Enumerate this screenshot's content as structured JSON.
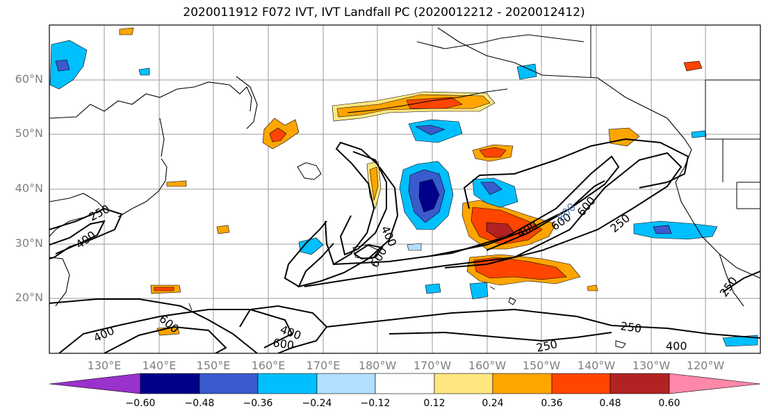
{
  "title": "2020011912 F072 IVT, IVT Landfall PC (2020012212 - 2020012412)",
  "lat_labels": [
    "60°N",
    "50°N",
    "40°N",
    "30°N",
    "20°N"
  ],
  "lon_labels": [
    "130°E",
    "140°E",
    "150°E",
    "160°E",
    "170°E",
    "180°W",
    "170°W",
    "160°W",
    "150°W",
    "140°W",
    "130°W",
    "120°W"
  ],
  "contour_labels": [
    "250",
    "400",
    "400",
    "600",
    "400",
    "600",
    "400",
    "800",
    "600",
    "250",
    "250",
    "400",
    "600",
    "400",
    "600",
    "250",
    "400",
    "250"
  ],
  "colorbar": {
    "ticks": [
      "−0.60",
      "−0.48",
      "−0.36",
      "−0.24",
      "−0.12",
      "0.12",
      "0.24",
      "0.36",
      "0.48",
      "0.60"
    ],
    "colors": [
      "#9932cc",
      "#00008b",
      "#3a5bcd",
      "#00bfff",
      "#b3e0ff",
      "#ffffff",
      "#ffe680",
      "#ffa500",
      "#ff4500",
      "#b22222",
      "#ff88aa"
    ]
  },
  "colors": {
    "positive_light": "#ffe680",
    "positive_mid": "#ffa500",
    "positive_strong": "#ff4500",
    "positive_max": "#b22222",
    "negative_light": "#b3e0ff",
    "negative_mid": "#00bfff",
    "negative_strong": "#3a5bcd",
    "negative_max": "#00008b"
  }
}
